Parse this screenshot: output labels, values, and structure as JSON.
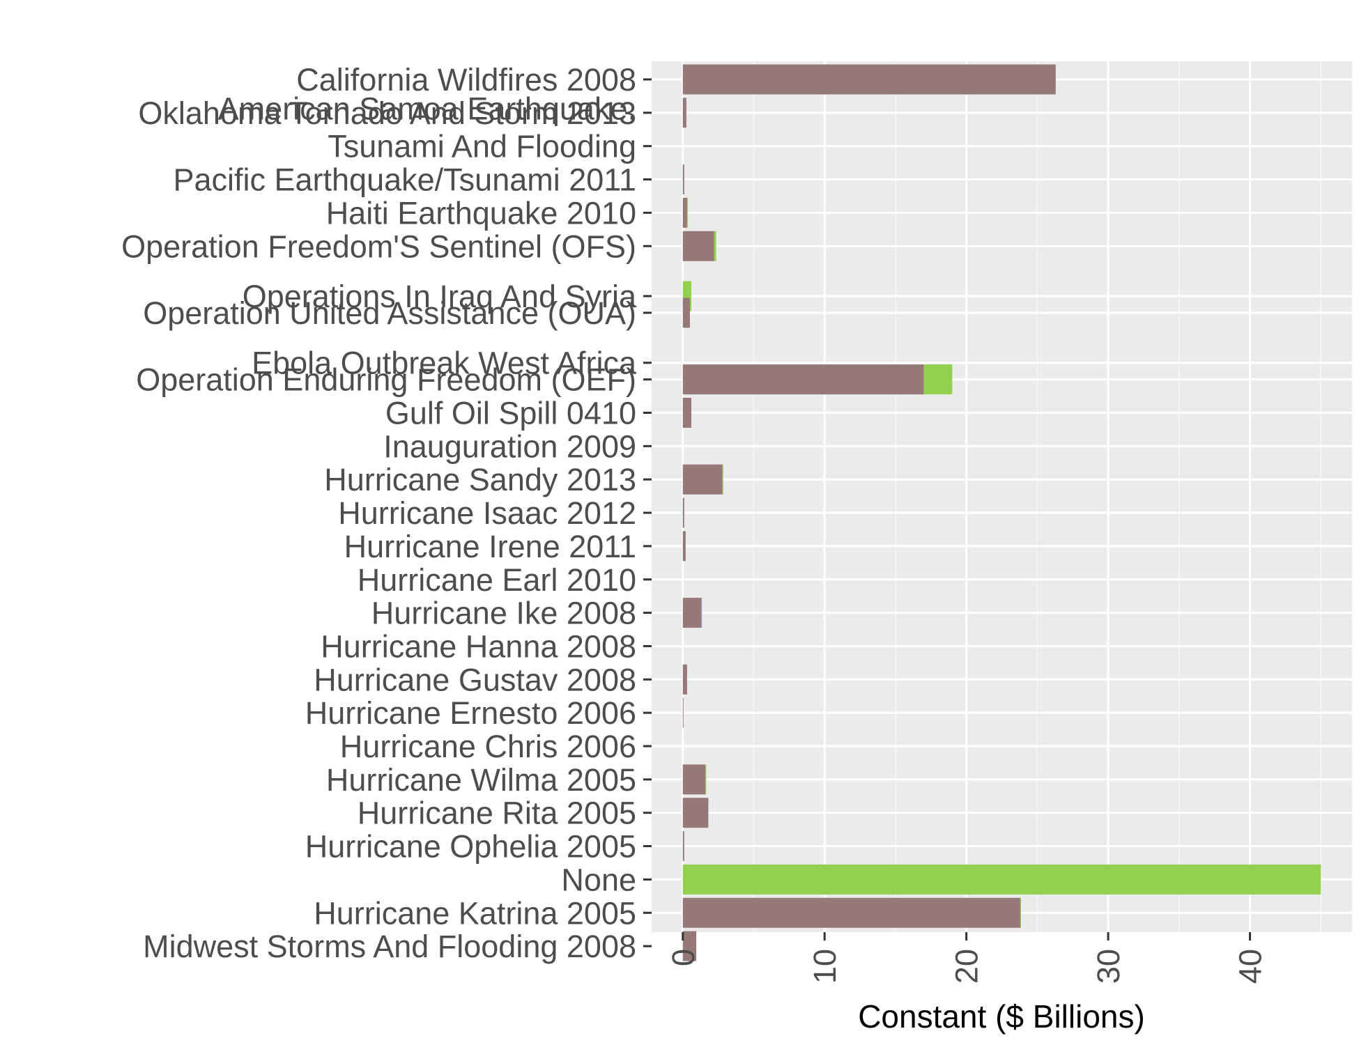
{
  "chart_data": {
    "type": "bar",
    "orientation": "horizontal",
    "stacked": true,
    "title": "",
    "xlabel": "Constant ($ Billions)",
    "ylabel": "",
    "xlim": [
      -2.2,
      47.2
    ],
    "xticks": [
      0,
      10,
      20,
      30,
      40
    ],
    "tick_labels": [
      "0",
      "10",
      "20",
      "30",
      "40"
    ],
    "tick_label_rotation": "vertical",
    "grid": true,
    "legend": "none",
    "categories": [
      "California Wildfires 2008",
      "Oklahoma Tornado And Storm 2013",
      "American Samoa Earthquake,\nTsunami And Flooding",
      "Pacific Earthquake/Tsunami 2011",
      "Haiti Earthquake 2010",
      "Operation Freedom'S Sentinel (OFS)",
      "Operations In Iraq And Syria",
      "Operation United Assistance (OUA)",
      "Ebola Outbreak West Africa",
      "Operation Enduring Freedom (OEF)",
      "Gulf Oil Spill 0410",
      "Inauguration 2009",
      "Hurricane Sandy 2013",
      "Hurricane Isaac 2012",
      "Hurricane Irene 2011",
      "Hurricane Earl 2010",
      "Hurricane Ike 2008",
      "Hurricane Hanna 2008",
      "Hurricane Gustav 2008",
      "Hurricane Ernesto 2006",
      "Hurricane Chris 2006",
      "Hurricane Wilma 2005",
      "Hurricane Rita 2005",
      "Hurricane Ophelia 2005",
      "None",
      "Hurricane Katrina 2005",
      "Midwest Storms And Flooding 2008"
    ],
    "category_positions": [
      1,
      2,
      3,
      4,
      5,
      6,
      7.5,
      8,
      9.5,
      10,
      11,
      12,
      13,
      14,
      15,
      16,
      17,
      18,
      19,
      20,
      21,
      22,
      23,
      24,
      25,
      26,
      27
    ],
    "series": [
      {
        "color": "#967878",
        "values": [
          26.3,
          0.25,
          0.0,
          0.1,
          0.3,
          2.2,
          0.0,
          0.5,
          0.0,
          17.0,
          0.6,
          0.0,
          2.8,
          0.1,
          0.2,
          0.0,
          1.3,
          0.0,
          0.3,
          0.05,
          0.0,
          1.6,
          1.8,
          0.1,
          0.0,
          23.8,
          0.95
        ]
      },
      {
        "color": "#92d050",
        "values": [
          0.0,
          0.0,
          0.0,
          0.0,
          0.05,
          0.15,
          0.6,
          0.0,
          0.0,
          2.0,
          0.0,
          0.0,
          0.05,
          0.0,
          0.0,
          0.0,
          0.0,
          0.0,
          0.0,
          0.0,
          0.0,
          0.05,
          0.0,
          0.0,
          45.0,
          0.05,
          0.0
        ]
      },
      {
        "color": "#8c96c6",
        "values": [
          0.0,
          0.0,
          0.0,
          0.0,
          0.0,
          0.0,
          0.0,
          0.0,
          0.0,
          0.0,
          0.0,
          0.0,
          0.0,
          0.0,
          0.0,
          0.0,
          0.05,
          0.0,
          0.0,
          0.0,
          0.0,
          0.0,
          0.0,
          0.0,
          0.0,
          0.0,
          0.0
        ]
      }
    ]
  },
  "colors": {
    "panel_background": "#ebebeb",
    "grid_major": "#ffffff",
    "grid_minor": "#f7f7f7",
    "label_text": "#4d4d4d",
    "axis_title_text": "#000000"
  }
}
